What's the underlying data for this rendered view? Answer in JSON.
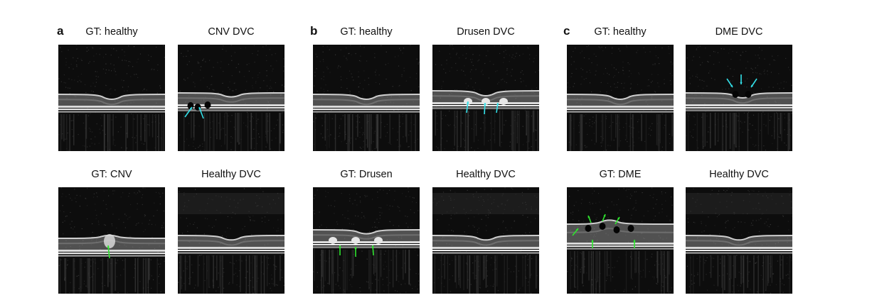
{
  "panels": [
    {
      "letter": "a",
      "cells": [
        {
          "title": "GT: healthy",
          "scan": "healthy"
        },
        {
          "title": "CNV DVC",
          "scan": "cnv_dvc",
          "arrow_color": "#33e0e8"
        },
        {
          "title": "GT: CNV",
          "scan": "cnv",
          "arrow_color": "#2ee62e"
        },
        {
          "title": "Healthy DVC",
          "scan": "healthy_dvc"
        }
      ]
    },
    {
      "letter": "b",
      "cells": [
        {
          "title": "GT: healthy",
          "scan": "healthy"
        },
        {
          "title": "Drusen DVC",
          "scan": "drusen_dvc",
          "arrow_color": "#33e0e8"
        },
        {
          "title": "GT: Drusen",
          "scan": "drusen",
          "arrow_color": "#2ee62e"
        },
        {
          "title": "Healthy DVC",
          "scan": "healthy_dvc"
        }
      ]
    },
    {
      "letter": "c",
      "cells": [
        {
          "title": "GT: healthy",
          "scan": "healthy"
        },
        {
          "title": "DME DVC",
          "scan": "dme_dvc",
          "arrow_color": "#33e0e8"
        },
        {
          "title": "GT: DME",
          "scan": "dme",
          "arrow_color": "#2ee62e"
        },
        {
          "title": "Healthy DVC",
          "scan": "healthy_dvc"
        }
      ]
    }
  ],
  "colors": {
    "background": "#ffffff",
    "scan_dark": "#0d0d0d",
    "retina_band": "#d9d9d9",
    "cyan_arrow": "#33e0e8",
    "green_arrow": "#2ee62e"
  }
}
